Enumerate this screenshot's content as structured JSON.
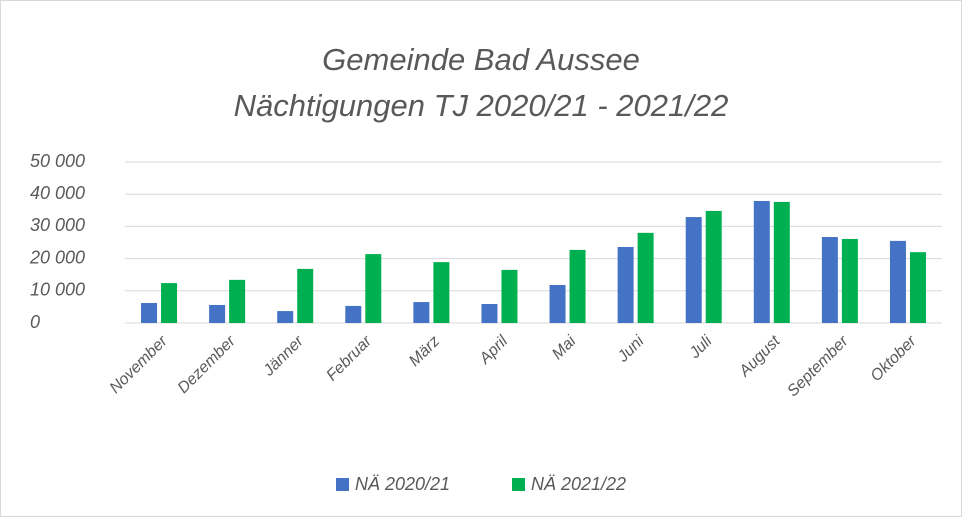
{
  "chart_data": {
    "type": "bar",
    "title": "Gemeinde Bad Aussee",
    "subtitle": "Nächtigungen TJ 2020/21 - 2021/22",
    "categories": [
      "November",
      "Dezember",
      "Jänner",
      "Februar",
      "März",
      "April",
      "Mai",
      "Juni",
      "Juli",
      "August",
      "September",
      "Oktober"
    ],
    "series": [
      {
        "name": "NÄ 2020/21",
        "color": "#4472c4",
        "values": [
          6200,
          5600,
          3700,
          5300,
          6500,
          5900,
          11800,
          23600,
          32900,
          37900,
          26700,
          25500
        ]
      },
      {
        "name": "NÄ 2021/22",
        "color": "#00b050",
        "values": [
          12400,
          13400,
          16800,
          21400,
          18900,
          16500,
          22700,
          28000,
          34800,
          37600,
          26100,
          22000
        ]
      }
    ],
    "ylim": [
      0,
      50000
    ],
    "yticks": [
      0,
      {
        "value": 10000,
        "label": "10 000"
      },
      {
        "value": 20000,
        "label": "20 000"
      },
      {
        "value": 30000,
        "label": "30 000"
      },
      {
        "value": 40000,
        "label": "40 000"
      },
      {
        "value": 50000,
        "label": "50 000"
      }
    ],
    "grid": true,
    "legend": "bottom"
  }
}
